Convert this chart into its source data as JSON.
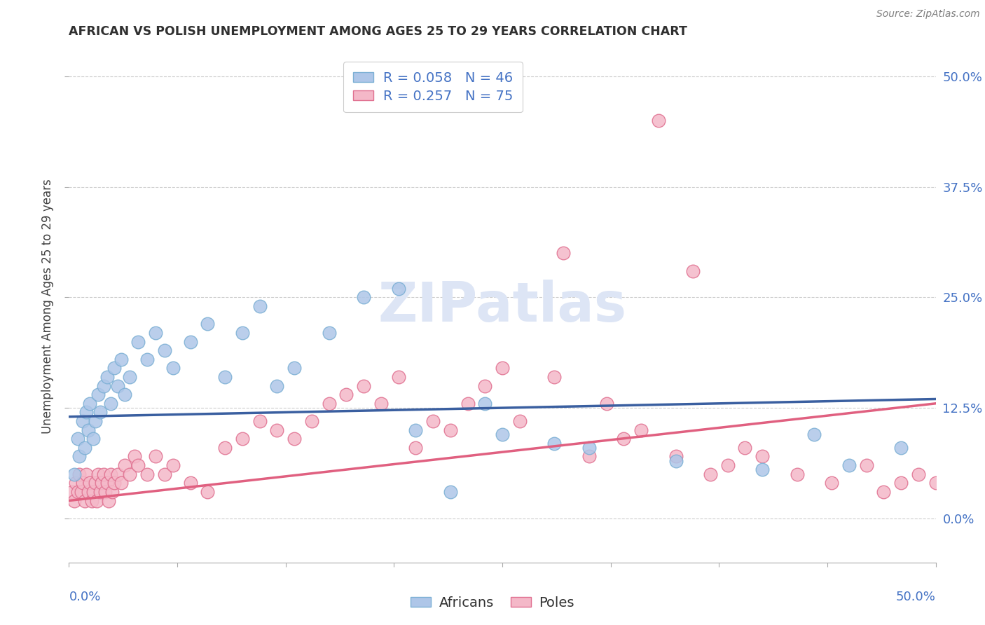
{
  "title": "AFRICAN VS POLISH UNEMPLOYMENT AMONG AGES 25 TO 29 YEARS CORRELATION CHART",
  "source": "Source: ZipAtlas.com",
  "ylabel": "Unemployment Among Ages 25 to 29 years",
  "ytick_values": [
    0.0,
    12.5,
    25.0,
    37.5,
    50.0
  ],
  "xlim": [
    0.0,
    50.0
  ],
  "ylim": [
    -5.0,
    53.0
  ],
  "legend_africans_R": "0.058",
  "legend_africans_N": "46",
  "legend_poles_R": "0.257",
  "legend_poles_N": "75",
  "legend_label_africans": "Africans",
  "legend_label_poles": "Poles",
  "africans_color": "#aec6e8",
  "africans_edgecolor": "#7bafd4",
  "africans_line_color": "#3a5fa0",
  "poles_color": "#f4b8c8",
  "poles_edgecolor": "#e07090",
  "poles_line_color": "#e06080",
  "title_color": "#303030",
  "axis_label_color": "#4472c4",
  "watermark_color": "#dde5f5",
  "background_color": "#ffffff",
  "grid_color": "#c8c8c8",
  "africans_x": [
    0.3,
    0.5,
    0.6,
    0.8,
    0.9,
    1.0,
    1.1,
    1.2,
    1.4,
    1.5,
    1.7,
    1.8,
    2.0,
    2.2,
    2.4,
    2.6,
    2.8,
    3.0,
    3.2,
    3.5,
    4.0,
    4.5,
    5.0,
    5.5,
    6.0,
    7.0,
    8.0,
    9.0,
    10.0,
    11.0,
    12.0,
    13.0,
    15.0,
    17.0,
    19.0,
    20.0,
    22.0,
    24.0,
    25.0,
    28.0,
    30.0,
    35.0,
    40.0,
    43.0,
    45.0,
    48.0
  ],
  "africans_y": [
    5.0,
    9.0,
    7.0,
    11.0,
    8.0,
    12.0,
    10.0,
    13.0,
    9.0,
    11.0,
    14.0,
    12.0,
    15.0,
    16.0,
    13.0,
    17.0,
    15.0,
    18.0,
    14.0,
    16.0,
    20.0,
    18.0,
    21.0,
    19.0,
    17.0,
    20.0,
    22.0,
    16.0,
    21.0,
    24.0,
    15.0,
    17.0,
    21.0,
    25.0,
    26.0,
    10.0,
    3.0,
    13.0,
    9.5,
    8.5,
    8.0,
    6.5,
    5.5,
    9.5,
    6.0,
    8.0
  ],
  "poles_x": [
    0.2,
    0.3,
    0.4,
    0.5,
    0.6,
    0.7,
    0.8,
    0.9,
    1.0,
    1.1,
    1.2,
    1.3,
    1.4,
    1.5,
    1.6,
    1.7,
    1.8,
    1.9,
    2.0,
    2.1,
    2.2,
    2.3,
    2.4,
    2.5,
    2.6,
    2.8,
    3.0,
    3.2,
    3.5,
    3.8,
    4.0,
    4.5,
    5.0,
    5.5,
    6.0,
    7.0,
    8.0,
    9.0,
    10.0,
    11.0,
    12.0,
    13.0,
    14.0,
    15.0,
    16.0,
    17.0,
    18.0,
    19.0,
    20.0,
    21.0,
    22.0,
    23.0,
    24.0,
    25.0,
    26.0,
    28.0,
    30.0,
    32.0,
    33.0,
    35.0,
    37.0,
    38.0,
    40.0,
    42.0,
    44.0,
    46.0,
    47.0,
    48.0,
    49.0,
    50.0,
    28.5,
    31.0,
    34.0,
    36.0,
    39.0
  ],
  "poles_y": [
    3.0,
    2.0,
    4.0,
    3.0,
    5.0,
    3.0,
    4.0,
    2.0,
    5.0,
    3.0,
    4.0,
    2.0,
    3.0,
    4.0,
    2.0,
    5.0,
    3.0,
    4.0,
    5.0,
    3.0,
    4.0,
    2.0,
    5.0,
    3.0,
    4.0,
    5.0,
    4.0,
    6.0,
    5.0,
    7.0,
    6.0,
    5.0,
    7.0,
    5.0,
    6.0,
    4.0,
    3.0,
    8.0,
    9.0,
    11.0,
    10.0,
    9.0,
    11.0,
    13.0,
    14.0,
    15.0,
    13.0,
    16.0,
    8.0,
    11.0,
    10.0,
    13.0,
    15.0,
    17.0,
    11.0,
    16.0,
    7.0,
    9.0,
    10.0,
    7.0,
    5.0,
    6.0,
    7.0,
    5.0,
    4.0,
    6.0,
    3.0,
    4.0,
    5.0,
    4.0,
    30.0,
    13.0,
    45.0,
    28.0,
    8.0
  ],
  "africans_trend_x": [
    0.0,
    50.0
  ],
  "africans_trend_y": [
    11.5,
    13.5
  ],
  "poles_trend_x": [
    0.0,
    50.0
  ],
  "poles_trend_y": [
    2.0,
    13.0
  ]
}
